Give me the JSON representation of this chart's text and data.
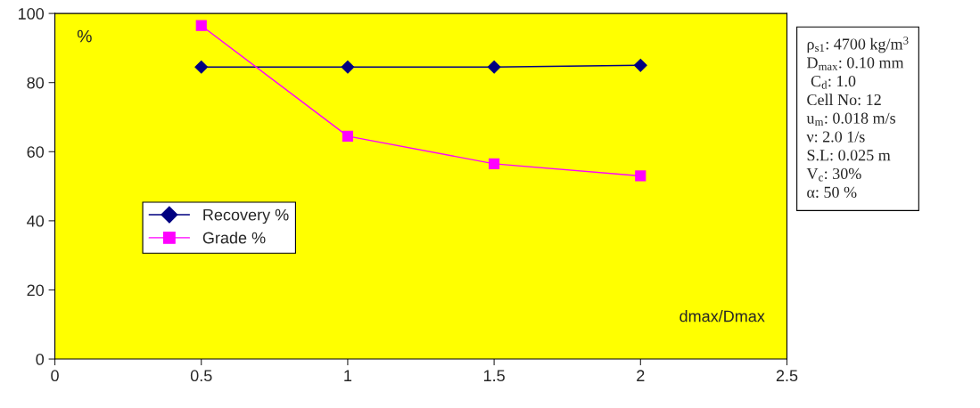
{
  "chart_data": {
    "type": "line",
    "x": [
      0.5,
      1,
      1.5,
      2
    ],
    "series": [
      {
        "name": "Recovery %",
        "color": "#000080",
        "marker": "diamond",
        "values": [
          84.5,
          84.5,
          84.5,
          85
        ]
      },
      {
        "name": "Grade %",
        "color": "#ff00ff",
        "marker": "square",
        "values": [
          96.5,
          64.5,
          56.5,
          53
        ]
      }
    ],
    "xlim": [
      0,
      2.5
    ],
    "xticks": [
      0,
      0.5,
      1,
      1.5,
      2,
      2.5
    ],
    "ylim": [
      0,
      100
    ],
    "yticks": [
      0,
      20,
      40,
      60,
      80,
      100
    ],
    "ylabel": "%",
    "xlabel": "dmax/Dmax",
    "grid": false,
    "legend": "center left",
    "line_style": "solid",
    "annotations": [
      "ρ$_{s1}$: 4700 kg/m$^{3}$",
      "D$_{max}$: 0.10 mm",
      " C$_{d}$: 1.0",
      "Cell No: 12",
      "u$_{m}$: 0.018 m/s",
      "ν: 2.0 1/s",
      "S.L: 0.025 m",
      "V$_{c}$: 30%",
      "α: 50 %"
    ]
  }
}
